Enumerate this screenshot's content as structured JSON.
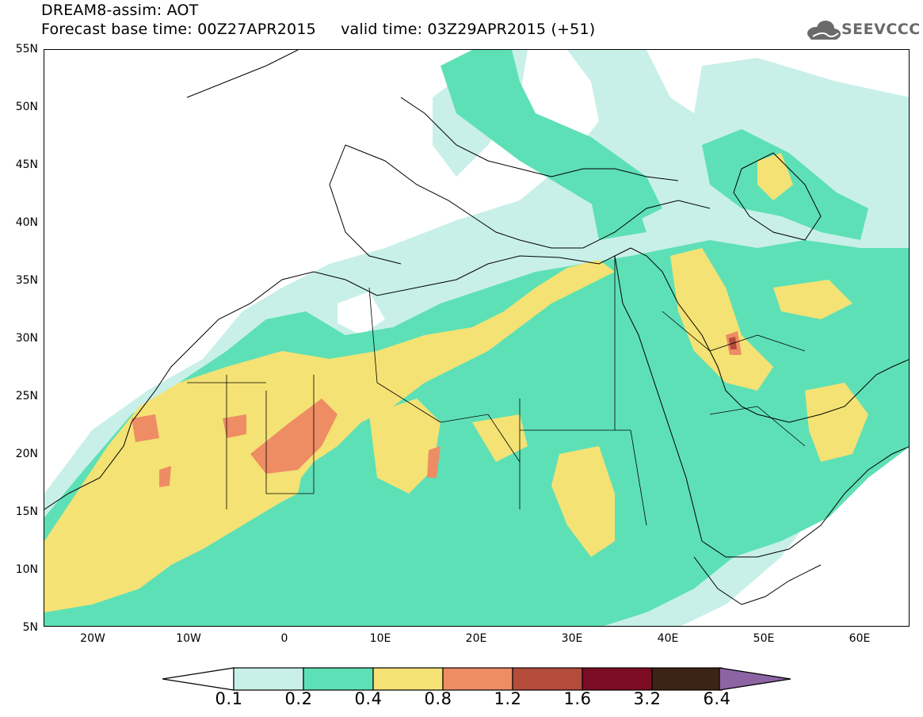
{
  "title": {
    "line1": "DREAM8-assim: AOT",
    "line2": "Forecast base time: 00Z27APR2015     valid time: 03Z29APR2015 (+51)"
  },
  "logo": {
    "text": "SEEVCCC",
    "icon": "cloud-icon"
  },
  "axes": {
    "lat_labels": [
      "55N",
      "50N",
      "45N",
      "40N",
      "35N",
      "30N",
      "25N",
      "20N",
      "15N",
      "10N",
      "5N"
    ],
    "lon_labels": [
      "20W",
      "10W",
      "0",
      "10E",
      "20E",
      "30E",
      "40E",
      "50E",
      "60E"
    ],
    "lat_range": [
      5,
      55
    ],
    "lon_range": [
      -25,
      65
    ]
  },
  "colorbar": {
    "labels": [
      "0.1",
      "0.2",
      "0.4",
      "0.8",
      "1.2",
      "1.6",
      "3.2",
      "6.4"
    ],
    "colors": [
      "#c8f0e8",
      "#5ee0b6",
      "#f4e274",
      "#ee8c64",
      "#b44c3c",
      "#7c0c24",
      "#3c2414",
      "#8c64a4"
    ]
  },
  "map_data": {
    "variable": "Aerosol Optical Thickness",
    "projection": "lat-lon",
    "colors": {
      "very_light": "#c8f0e8",
      "light": "#5ee0b6",
      "moderate": "#f4e274",
      "high": "#ee8c64",
      "very_high": "#b44c3c"
    }
  }
}
